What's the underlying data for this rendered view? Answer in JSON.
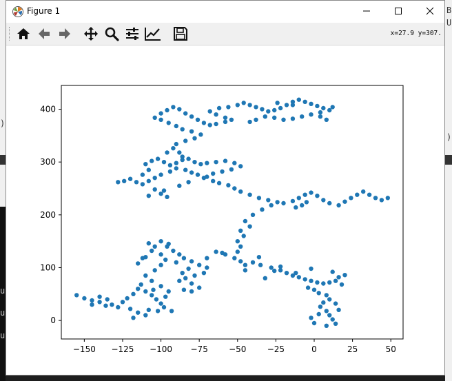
{
  "window": {
    "title": "Figure 1",
    "controls": {
      "minimize": "minimize",
      "maximize": "maximize",
      "close": "close"
    }
  },
  "toolbar": {
    "tools": [
      "home-icon",
      "back-arrow-icon",
      "forward-arrow-icon",
      "pan-icon",
      "zoom-icon",
      "configure-subplots-icon",
      "edit-axis-icon",
      "save-icon"
    ],
    "coord_readout": "x=27.9 y=307."
  },
  "background": {
    "right_letters": [
      "B",
      "U"
    ],
    "left_fragments": [
      "u",
      "u",
      "u"
    ],
    "left_paren": ")"
  },
  "chart_data": {
    "type": "scatter",
    "marker_color": "#1f77b4",
    "xlim": [
      -165,
      58
    ],
    "ylim": [
      -35,
      445
    ],
    "xticks": [
      -150,
      -125,
      -100,
      -75,
      -50,
      -25,
      0,
      25,
      50
    ],
    "xtick_labels": [
      "−150",
      "−125",
      "−100",
      "−75",
      "−50",
      "−25",
      "0",
      "25",
      "50"
    ],
    "yticks": [
      0,
      100,
      200,
      300,
      400
    ],
    "ytick_labels": [
      "0",
      "100",
      "200",
      "300",
      "400"
    ],
    "title": "",
    "xlabel": "",
    "ylabel": "",
    "grid": false,
    "series": [
      {
        "points": [
          [
            -155,
            48
          ],
          [
            -150,
            42
          ],
          [
            -145,
            38
          ],
          [
            -140,
            45
          ],
          [
            -135,
            40
          ],
          [
            -132,
            30
          ],
          [
            -128,
            25
          ],
          [
            -125,
            35
          ],
          [
            -122,
            42
          ],
          [
            -118,
            50
          ],
          [
            -115,
            60
          ],
          [
            -110,
            55
          ],
          [
            -106,
            48
          ],
          [
            -103,
            40
          ],
          [
            -100,
            32
          ],
          [
            -97,
            45
          ],
          [
            -95,
            55
          ],
          [
            -100,
            65
          ],
          [
            -106,
            75
          ],
          [
            -110,
            85
          ],
          [
            -104,
            95
          ],
          [
            -100,
            105
          ],
          [
            -97,
            115
          ],
          [
            -100,
            125
          ],
          [
            -106,
            132
          ],
          [
            -110,
            120
          ],
          [
            -104,
            140
          ],
          [
            -100,
            150
          ],
          [
            -95,
            145
          ],
          [
            -92,
            132
          ],
          [
            -88,
            125
          ],
          [
            -85,
            118
          ],
          [
            -80,
            112
          ],
          [
            -75,
            105
          ],
          [
            -70,
            100
          ],
          [
            -72,
            90
          ],
          [
            -78,
            85
          ],
          [
            -84,
            80
          ],
          [
            -88,
            75
          ],
          [
            -80,
            70
          ],
          [
            -75,
            62
          ],
          [
            -80,
            55
          ],
          [
            -85,
            58
          ],
          [
            -70,
            118
          ],
          [
            -64,
            130
          ],
          [
            -58,
            125
          ],
          [
            -52,
            118
          ],
          [
            -48,
            112
          ],
          [
            -45,
            105
          ],
          [
            -40,
            110
          ],
          [
            -35,
            105
          ],
          [
            -28,
            100
          ],
          [
            -22,
            95
          ],
          [
            -18,
            90
          ],
          [
            -14,
            85
          ],
          [
            -10,
            82
          ],
          [
            -6,
            78
          ],
          [
            -2,
            75
          ],
          [
            2,
            72
          ],
          [
            6,
            70
          ],
          [
            10,
            72
          ],
          [
            14,
            75
          ],
          [
            18,
            68
          ],
          [
            -4,
            62
          ],
          [
            0,
            58
          ],
          [
            3,
            52
          ],
          [
            8,
            48
          ],
          [
            10,
            40
          ],
          [
            6,
            34
          ],
          [
            4,
            26
          ],
          [
            8,
            18
          ],
          [
            10,
            10
          ],
          [
            12,
            2
          ],
          [
            14,
            -6
          ],
          [
            8,
            -10
          ],
          [
            0,
            -5
          ],
          [
            -2,
            5
          ],
          [
            3,
            12
          ],
          [
            16,
            20
          ],
          [
            14,
            32
          ],
          [
            -22,
            102
          ],
          [
            -32,
            80
          ],
          [
            -45,
            95
          ],
          [
            -50,
            130
          ],
          [
            -48,
            140
          ],
          [
            -50,
            150
          ],
          [
            -46,
            160
          ],
          [
            -48,
            170
          ],
          [
            -42,
            178
          ],
          [
            -45,
            188
          ],
          [
            -40,
            200
          ],
          [
            -34,
            210
          ],
          [
            -28,
            218
          ],
          [
            -20,
            222
          ],
          [
            -14,
            226
          ],
          [
            -10,
            232
          ],
          [
            -6,
            238
          ],
          [
            -2,
            242
          ],
          [
            2,
            236
          ],
          [
            6,
            228
          ],
          [
            10,
            222
          ],
          [
            16,
            218
          ],
          [
            20,
            225
          ],
          [
            24,
            232
          ],
          [
            28,
            238
          ],
          [
            32,
            244
          ],
          [
            36,
            238
          ],
          [
            40,
            232
          ],
          [
            44,
            228
          ],
          [
            48,
            232
          ],
          [
            -5,
            224
          ],
          [
            -8,
            218
          ],
          [
            -12,
            214
          ],
          [
            -24,
            224
          ],
          [
            -30,
            228
          ],
          [
            -36,
            232
          ],
          [
            -42,
            238
          ],
          [
            -48,
            244
          ],
          [
            -52,
            250
          ],
          [
            -56,
            256
          ],
          [
            -62,
            260
          ],
          [
            -66,
            264
          ],
          [
            -72,
            270
          ],
          [
            -76,
            276
          ],
          [
            -80,
            280
          ],
          [
            -84,
            285
          ],
          [
            -90,
            288
          ],
          [
            -94,
            282
          ],
          [
            -100,
            276
          ],
          [
            -104,
            270
          ],
          [
            -108,
            264
          ],
          [
            -112,
            258
          ],
          [
            -116,
            262
          ],
          [
            -120,
            268
          ],
          [
            -124,
            264
          ],
          [
            -128,
            262
          ],
          [
            -112,
            276
          ],
          [
            -108,
            285
          ],
          [
            -110,
            296
          ],
          [
            -106,
            302
          ],
          [
            -102,
            306
          ],
          [
            -98,
            300
          ],
          [
            -94,
            294
          ],
          [
            -90,
            298
          ],
          [
            -86,
            304
          ],
          [
            -82,
            306
          ],
          [
            -78,
            300
          ],
          [
            -74,
            296
          ],
          [
            -70,
            298
          ],
          [
            -64,
            300
          ],
          [
            -58,
            302
          ],
          [
            -52,
            298
          ],
          [
            -48,
            292
          ],
          [
            -54,
            286
          ],
          [
            -60,
            282
          ],
          [
            -66,
            278
          ],
          [
            -70,
            272
          ],
          [
            -104,
            248
          ],
          [
            -100,
            240
          ],
          [
            -96,
            234
          ],
          [
            -108,
            236
          ],
          [
            -98,
            246
          ],
          [
            -88,
            255
          ],
          [
            -82,
            262
          ],
          [
            -96,
            318
          ],
          [
            -92,
            326
          ],
          [
            -90,
            334
          ],
          [
            -84,
            340
          ],
          [
            -78,
            345
          ],
          [
            -74,
            352
          ],
          [
            -80,
            358
          ],
          [
            -86,
            362
          ],
          [
            -90,
            368
          ],
          [
            -95,
            374
          ],
          [
            -100,
            380
          ],
          [
            -104,
            384
          ],
          [
            -100,
            392
          ],
          [
            -96,
            398
          ],
          [
            -92,
            404
          ],
          [
            -88,
            400
          ],
          [
            -84,
            392
          ],
          [
            -80,
            386
          ],
          [
            -76,
            380
          ],
          [
            -72,
            374
          ],
          [
            -68,
            370
          ],
          [
            -64,
            372
          ],
          [
            -58,
            376
          ],
          [
            -54,
            380
          ],
          [
            -58,
            384
          ],
          [
            -64,
            390
          ],
          [
            -68,
            396
          ],
          [
            -62,
            402
          ],
          [
            -56,
            404
          ],
          [
            -50,
            408
          ],
          [
            -46,
            412
          ],
          [
            -42,
            408
          ],
          [
            -38,
            404
          ],
          [
            -34,
            400
          ],
          [
            -30,
            396
          ],
          [
            -26,
            398
          ],
          [
            -22,
            402
          ],
          [
            -18,
            408
          ],
          [
            -14,
            414
          ],
          [
            -10,
            418
          ],
          [
            -6,
            414
          ],
          [
            -2,
            410
          ],
          [
            2,
            406
          ],
          [
            6,
            402
          ],
          [
            10,
            398
          ],
          [
            12,
            404
          ],
          [
            4,
            394
          ],
          [
            -2,
            390
          ],
          [
            -8,
            386
          ],
          [
            -14,
            382
          ],
          [
            -20,
            380
          ],
          [
            -26,
            384
          ],
          [
            -32,
            386
          ],
          [
            -38,
            380
          ],
          [
            -42,
            376
          ],
          [
            -14,
            408
          ],
          [
            -24,
            412
          ],
          [
            8,
            380
          ],
          [
            4,
            386
          ],
          [
            -88,
            318
          ],
          [
            -86,
            310
          ],
          [
            -136,
            28
          ],
          [
            -140,
            35
          ],
          [
            -145,
            30
          ],
          [
            -120,
            22
          ],
          [
            -115,
            15
          ],
          [
            -110,
            10
          ],
          [
            -118,
            5
          ],
          [
            -108,
            20
          ],
          [
            -102,
            18
          ],
          [
            -98,
            25
          ],
          [
            -93,
            18
          ],
          [
            -105,
            58
          ],
          [
            -113,
            68
          ],
          [
            -115,
            108
          ],
          [
            -112,
            118
          ],
          [
            -108,
            146
          ],
          [
            -96,
            140
          ],
          [
            -90,
            110
          ],
          [
            -86,
            90
          ],
          [
            -82,
            98
          ],
          [
            -60,
            128
          ],
          [
            -36,
            120
          ],
          [
            -26,
            94
          ],
          [
            -12,
            90
          ],
          [
            -2,
            98
          ],
          [
            12,
            92
          ],
          [
            16,
            82
          ],
          [
            20,
            86
          ]
        ]
      }
    ]
  }
}
